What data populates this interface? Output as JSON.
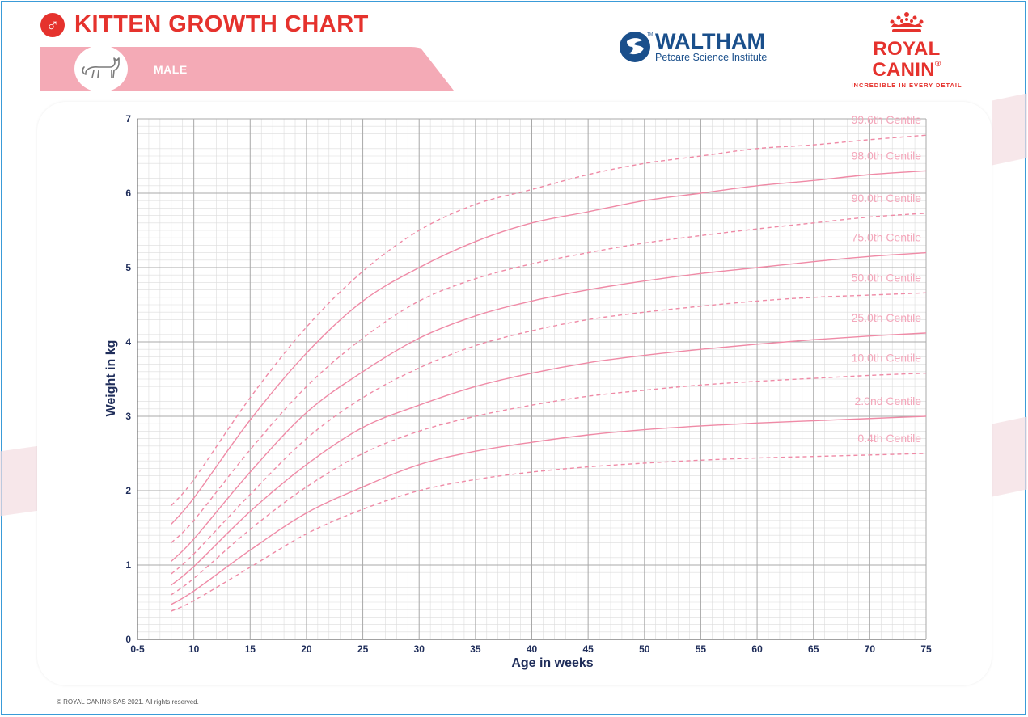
{
  "header": {
    "title": "KITTEN GROWTH CHART",
    "sex_label": "MALE",
    "male_symbol": "♂"
  },
  "logos": {
    "waltham_name": "WALTHAM",
    "waltham_tm": "TM",
    "waltham_sub": "Petcare Science Institute",
    "royal_canin_name": "ROYAL CANIN",
    "royal_canin_reg": "®",
    "royal_canin_tag": "INCREDIBLE IN EVERY DETAIL"
  },
  "footer": {
    "copyright": "© ROYAL CANIN® SAS 2021. All rights reserved."
  },
  "colors": {
    "accent": "#e5322d",
    "curve": "#ef8aa6",
    "label": "#f4a7bb",
    "axis_text": "#1f2d5a",
    "band": "#f4aab6",
    "waltham_blue": "#1a4f8b"
  },
  "chart_data": {
    "type": "line",
    "xlabel": "Age in weeks",
    "ylabel": "Weight in kg",
    "xlim": [
      5,
      75
    ],
    "ylim": [
      0,
      7
    ],
    "x_ticks": [
      {
        "value": 5,
        "label": "0-5"
      },
      {
        "value": 10,
        "label": "10"
      },
      {
        "value": 15,
        "label": "15"
      },
      {
        "value": 20,
        "label": "20"
      },
      {
        "value": 25,
        "label": "25"
      },
      {
        "value": 30,
        "label": "30"
      },
      {
        "value": 35,
        "label": "35"
      },
      {
        "value": 40,
        "label": "40"
      },
      {
        "value": 45,
        "label": "45"
      },
      {
        "value": 50,
        "label": "50"
      },
      {
        "value": 55,
        "label": "55"
      },
      {
        "value": 60,
        "label": "60"
      },
      {
        "value": 65,
        "label": "65"
      },
      {
        "value": 70,
        "label": "70"
      },
      {
        "value": 75,
        "label": "75"
      }
    ],
    "y_ticks": [
      0,
      1,
      2,
      3,
      4,
      5,
      6,
      7
    ],
    "grid": true,
    "x": [
      8,
      10,
      15,
      20,
      25,
      30,
      35,
      40,
      45,
      50,
      55,
      60,
      65,
      70,
      75
    ],
    "series": [
      {
        "name": "99.6th Centile",
        "style": "dashed",
        "values": [
          1.8,
          2.15,
          3.25,
          4.2,
          4.95,
          5.5,
          5.85,
          6.05,
          6.25,
          6.4,
          6.5,
          6.6,
          6.65,
          6.72,
          6.78
        ]
      },
      {
        "name": "98.0th Centile",
        "style": "solid",
        "values": [
          1.55,
          1.9,
          2.95,
          3.85,
          4.55,
          5.0,
          5.35,
          5.6,
          5.75,
          5.9,
          6.0,
          6.1,
          6.17,
          6.25,
          6.3
        ]
      },
      {
        "name": "90.0th Centile",
        "style": "dashed",
        "values": [
          1.3,
          1.6,
          2.55,
          3.4,
          4.05,
          4.55,
          4.85,
          5.05,
          5.2,
          5.33,
          5.43,
          5.52,
          5.6,
          5.68,
          5.73
        ]
      },
      {
        "name": "75.0th Centile",
        "style": "solid",
        "values": [
          1.05,
          1.35,
          2.25,
          3.05,
          3.6,
          4.05,
          4.35,
          4.55,
          4.7,
          4.82,
          4.92,
          5.0,
          5.08,
          5.15,
          5.2
        ]
      },
      {
        "name": "50.0th Centile",
        "style": "dashed",
        "values": [
          0.88,
          1.15,
          1.95,
          2.7,
          3.25,
          3.65,
          3.95,
          4.15,
          4.3,
          4.4,
          4.48,
          4.55,
          4.6,
          4.63,
          4.66
        ]
      },
      {
        "name": "25.0th Centile",
        "style": "solid",
        "values": [
          0.73,
          0.98,
          1.72,
          2.35,
          2.85,
          3.15,
          3.4,
          3.58,
          3.72,
          3.82,
          3.9,
          3.97,
          4.03,
          4.08,
          4.12
        ]
      },
      {
        "name": "10.0th Centile",
        "style": "dashed",
        "values": [
          0.6,
          0.82,
          1.48,
          2.05,
          2.5,
          2.8,
          3.0,
          3.15,
          3.27,
          3.35,
          3.42,
          3.47,
          3.51,
          3.55,
          3.58
        ]
      },
      {
        "name": "2.0nd Centile",
        "style": "solid",
        "values": [
          0.47,
          0.65,
          1.2,
          1.7,
          2.05,
          2.35,
          2.53,
          2.65,
          2.75,
          2.82,
          2.87,
          2.91,
          2.94,
          2.97,
          3.0
        ]
      },
      {
        "name": "0.4th Centile",
        "style": "dashed",
        "values": [
          0.38,
          0.52,
          0.97,
          1.42,
          1.75,
          2.0,
          2.15,
          2.25,
          2.32,
          2.37,
          2.41,
          2.44,
          2.46,
          2.48,
          2.5
        ]
      }
    ]
  }
}
